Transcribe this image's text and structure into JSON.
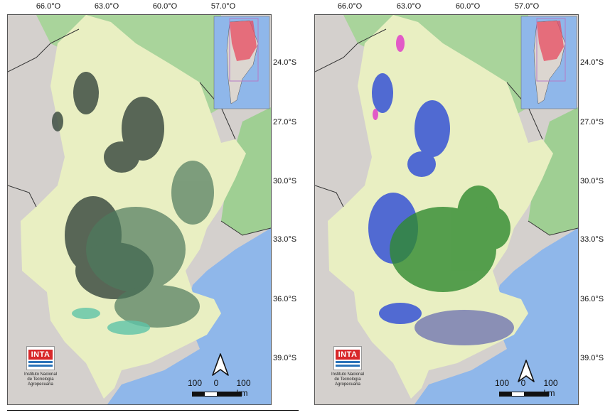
{
  "panels": [
    {
      "id": "left",
      "lon_labels": [
        "66.0°O",
        "63.0°O",
        "60.0°O",
        "57.0°O"
      ],
      "lat_labels": [
        "24.0°S",
        "27.0°S",
        "30.0°S",
        "33.0°S",
        "36.0°S",
        "39.0°S"
      ],
      "scale_labels": [
        "100",
        "0",
        "100 km"
      ],
      "logo": {
        "wordmark": "INTA",
        "caption_line1": "Instituto Nacional",
        "caption_line2": "de Tecnología Agropecuaria"
      },
      "north_arrow": "north-arrow-icon"
    },
    {
      "id": "right",
      "lon_labels": [
        "66.0°O",
        "63.0°O",
        "60.0°O",
        "57.0°O"
      ],
      "lat_labels": [
        "24.0°S",
        "27.0°S",
        "30.0°S",
        "33.0°S",
        "36.0°S",
        "39.0°S"
      ],
      "scale_labels": [
        "100",
        "0",
        "100 km"
      ],
      "logo": {
        "wordmark": "INTA",
        "caption_line1": "Instituto Nacional",
        "caption_line2": "de Tecnología Agropecuaria"
      },
      "north_arrow": "north-arrow-icon"
    }
  ],
  "colors": {
    "ocean": "#8fb7ea",
    "land_outside": "#d4d0cd",
    "region_fill": "#e9efc2",
    "vegetation_green": "#7fc87a",
    "left_dark": "#3f4f44",
    "left_teal": "#5fc4a8",
    "right_blue": "#2a49d6",
    "right_green": "#2f8a2f",
    "right_magenta": "#e040c8",
    "inset_highlight": "#e84a5f"
  }
}
